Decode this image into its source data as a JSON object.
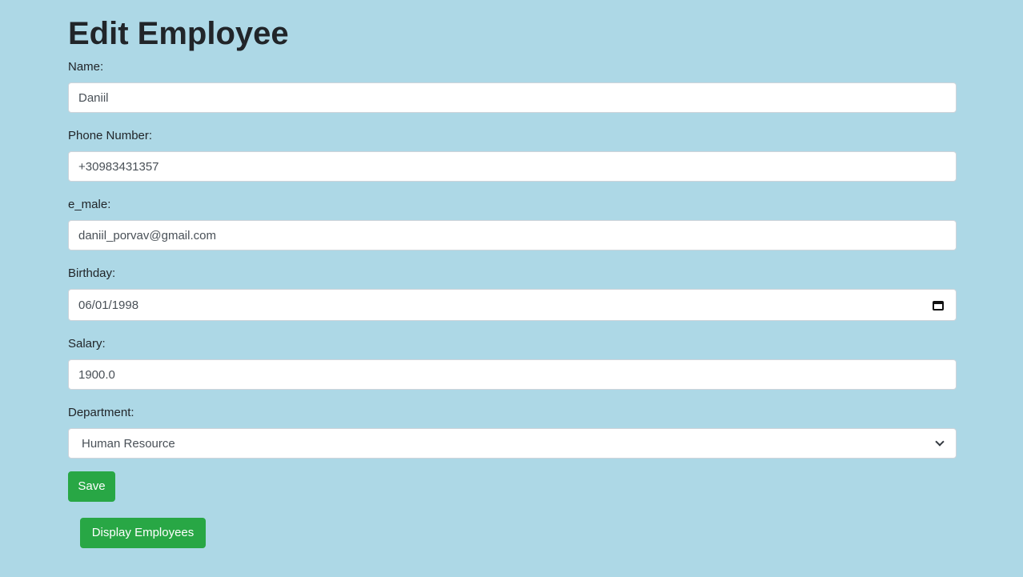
{
  "page": {
    "title": "Edit Employee"
  },
  "form": {
    "name": {
      "label": "Name:",
      "value": "Daniil"
    },
    "phone": {
      "label": "Phone Number:",
      "value": "+30983431357"
    },
    "email": {
      "label": "e_male:",
      "value": "daniil_porvav@gmail.com"
    },
    "birthday": {
      "label": "Birthday:",
      "value": "06/01/1998",
      "icon": "calendar-icon"
    },
    "salary": {
      "label": "Salary:",
      "value": "1900.0"
    },
    "department": {
      "label": "Department:",
      "value": "Human Resource",
      "icon": "chevron-down-icon"
    }
  },
  "buttons": {
    "save": "Save",
    "display": "Display Employees"
  },
  "colors": {
    "background": "#add8e6",
    "button": "#28a745",
    "field": "#ffffff"
  }
}
